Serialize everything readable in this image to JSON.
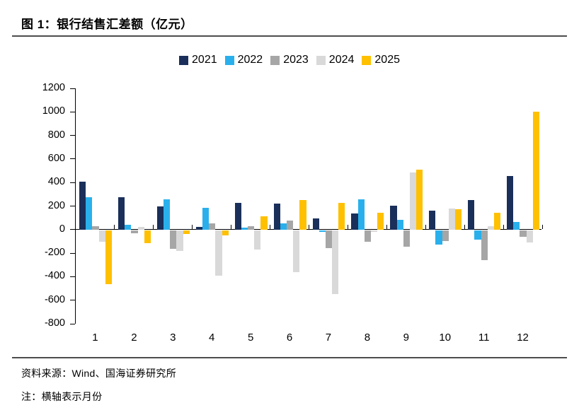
{
  "page": {
    "title": "图 1：银行结售汇差额（亿元）",
    "source_note": "资料来源：Wind、国海证券研究所",
    "bottom_note": "注：横轴表示月份"
  },
  "chart_data": {
    "type": "bar",
    "title": "银行结售汇差额（亿元）",
    "xlabel": "月份",
    "ylabel": "亿元",
    "categories": [
      "1",
      "2",
      "3",
      "4",
      "5",
      "6",
      "7",
      "8",
      "9",
      "10",
      "11",
      "12"
    ],
    "series": [
      {
        "name": "2021",
        "color": "#1a2f5a",
        "values": [
          405,
          275,
          195,
          20,
          230,
          220,
          95,
          135,
          205,
          160,
          250,
          455
        ]
      },
      {
        "name": "2022",
        "color": "#29b0ec",
        "values": [
          275,
          40,
          260,
          185,
          15,
          55,
          -15,
          255,
          80,
          -125,
          -80,
          65
        ]
      },
      {
        "name": "2023",
        "color": "#a6a6a6",
        "values": [
          30,
          -25,
          -160,
          50,
          30,
          75,
          -150,
          -100,
          -140,
          -90,
          -255,
          -55
        ]
      },
      {
        "name": "2024",
        "color": "#d9d9d9",
        "values": [
          -100,
          20,
          -175,
          -390,
          -165,
          -355,
          -545,
          -15,
          485,
          180,
          30,
          -105
        ]
      },
      {
        "name": "2025",
        "color": "#ffc000",
        "values": [
          -460,
          -110,
          -35,
          -45,
          110,
          250,
          225,
          145,
          510,
          170,
          145,
          1000
        ]
      }
    ],
    "ylim": [
      -800,
      1200
    ],
    "y_ticks": [
      1200,
      1000,
      800,
      600,
      400,
      200,
      0,
      -200,
      -400,
      -600,
      -800
    ],
    "legend_position": "top",
    "grid": false
  }
}
